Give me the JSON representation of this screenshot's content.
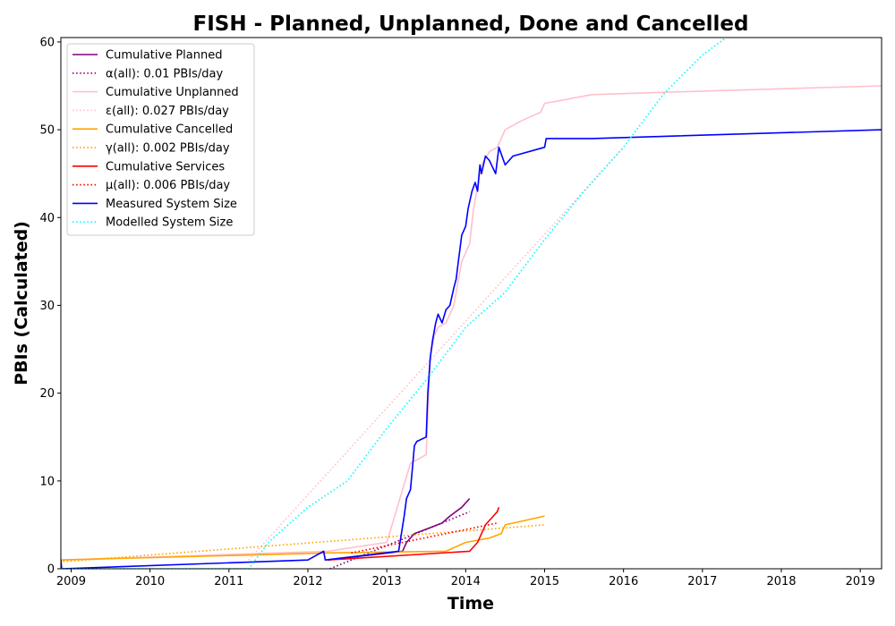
{
  "chart_data": {
    "type": "line",
    "title": "FISH - Planned, Unplanned, Done  and Cancelled",
    "xlabel": "Time",
    "ylabel": "PBIs (Calculated)",
    "xlim": [
      2008.87,
      2019.27
    ],
    "ylim": [
      0,
      60.5
    ],
    "xticks": [
      2009,
      2010,
      2011,
      2012,
      2013,
      2014,
      2015,
      2016,
      2017,
      2018,
      2019
    ],
    "yticks": [
      0,
      10,
      20,
      30,
      40,
      50,
      60
    ],
    "grid": false,
    "legend_position": "top-left",
    "series": [
      {
        "name": "Cumulative Planned",
        "color": "#800080",
        "style": "solid",
        "x": [
          2012.25,
          2013.2,
          2013.25,
          2013.35,
          2013.5,
          2013.7,
          2013.8,
          2013.95,
          2014.05
        ],
        "y": [
          1.0,
          2.0,
          3.0,
          4.0,
          4.5,
          5.2,
          6.0,
          7.0,
          8.0
        ]
      },
      {
        "name": "α(all): 0.01 PBIs/day",
        "color": "#800080",
        "style": "dotted",
        "x": [
          2012.28,
          2014.05
        ],
        "y": [
          0,
          6.5
        ]
      },
      {
        "name": "Cumulative Unplanned",
        "color": "#ffc0cb",
        "style": "solid",
        "x": [
          2008.87,
          2012.25,
          2013.0,
          2013.3,
          2013.5,
          2013.55,
          2013.6,
          2013.65,
          2013.75,
          2013.85,
          2013.95,
          2014.05,
          2014.1,
          2014.2,
          2014.3,
          2014.4,
          2014.5,
          2014.7,
          2014.95,
          2015.0,
          2015.6,
          2017.0,
          2019.27
        ],
        "y": [
          1.0,
          2.0,
          3.0,
          12.0,
          13.0,
          24.0,
          26.5,
          27.5,
          28.0,
          30.0,
          35.0,
          37.0,
          41.0,
          46.0,
          47.5,
          48.0,
          50.0,
          51.0,
          52.0,
          53.0,
          54.0,
          54.4,
          55.0
        ]
      },
      {
        "name": "ε(all): 0.027 PBIs/day",
        "color": "#ffc0cb",
        "style": "dotted",
        "x": [
          2011.25,
          2016.0
        ],
        "y": [
          1.0,
          48.0
        ]
      },
      {
        "name": "Cumulative Cancelled",
        "color": "#ffa500",
        "style": "solid",
        "x": [
          2008.87,
          2012.25,
          2013.75,
          2014.0,
          2014.3,
          2014.45,
          2014.5,
          2015.0
        ],
        "y": [
          1.0,
          1.8,
          2.0,
          3.0,
          3.5,
          4.0,
          5.0,
          6.0
        ]
      },
      {
        "name": "γ(all): 0.002 PBIs/day",
        "color": "#ffa500",
        "style": "dotted",
        "x": [
          2008.9,
          2015.0
        ],
        "y": [
          0.8,
          5.0
        ]
      },
      {
        "name": "Cumulative Services",
        "color": "#ff0000",
        "style": "solid",
        "x": [
          2012.25,
          2014.05,
          2014.15,
          2014.25,
          2014.35,
          2014.4,
          2014.42
        ],
        "y": [
          1.0,
          2.0,
          3.0,
          5.0,
          6.0,
          6.5,
          7.0
        ]
      },
      {
        "name": "μ(all): 0.006 PBIs/day",
        "color": "#ff0000",
        "style": "dotted",
        "x": [
          2012.55,
          2014.4
        ],
        "y": [
          1.8,
          5.2
        ]
      },
      {
        "name": "Measured System Size",
        "color": "#0000ff",
        "style": "solid",
        "x": [
          2008.87,
          2008.88,
          2012.0,
          2012.2,
          2012.22,
          2013.15,
          2013.22,
          2013.25,
          2013.3,
          2013.33,
          2013.35,
          2013.38,
          2013.5,
          2013.52,
          2013.55,
          2013.58,
          2013.62,
          2013.65,
          2013.7,
          2013.75,
          2013.8,
          2013.85,
          2013.88,
          2013.9,
          2013.95,
          2014.0,
          2014.03,
          2014.08,
          2014.12,
          2014.15,
          2014.18,
          2014.2,
          2014.25,
          2014.3,
          2014.38,
          2014.42,
          2014.5,
          2014.6,
          2015.0,
          2015.02,
          2015.6,
          2019.27
        ],
        "y": [
          1.0,
          0.0,
          1.0,
          2.0,
          1.0,
          2.0,
          6.0,
          8.0,
          9.0,
          12.0,
          14.0,
          14.5,
          15.0,
          20.0,
          24.0,
          26.0,
          28.0,
          29.0,
          28.0,
          29.5,
          30.0,
          32.0,
          33.0,
          34.5,
          38.0,
          39.0,
          41.0,
          43.0,
          44.0,
          43.0,
          46.0,
          45.0,
          47.0,
          46.5,
          45.0,
          48.0,
          46.0,
          47.0,
          48.0,
          49.0,
          49.0,
          50.0
        ]
      },
      {
        "name": "Modelled System Size",
        "color": "#00ffff",
        "style": "dotted",
        "x": [
          2008.87,
          2011.25,
          2011.5,
          2012.0,
          2012.5,
          2013.0,
          2013.5,
          2014.0,
          2014.5,
          2015.0,
          2015.5,
          2016.0,
          2016.5,
          2017.0,
          2017.3
        ],
        "y": [
          0.0,
          0.0,
          3.0,
          7.0,
          10.0,
          16.0,
          21.5,
          27.5,
          31.5,
          37.5,
          43.0,
          48.0,
          54.0,
          58.5,
          60.5
        ]
      }
    ]
  }
}
